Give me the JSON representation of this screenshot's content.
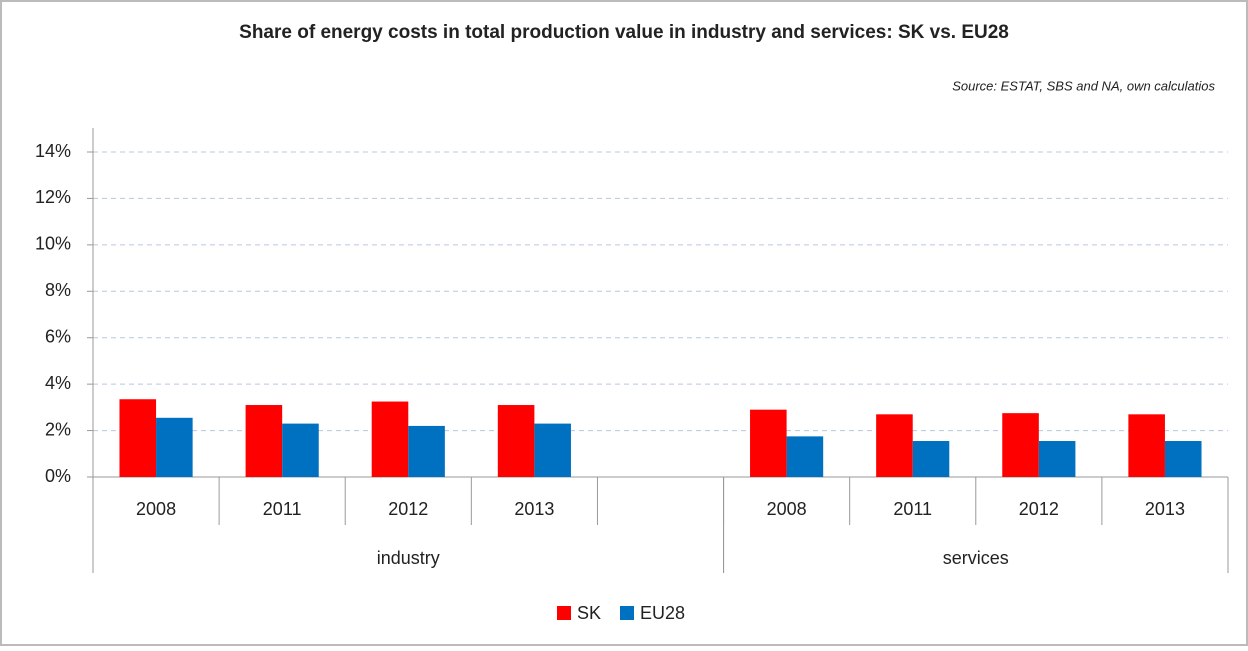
{
  "chart_data": {
    "type": "bar",
    "title": "Share of energy costs in total production value in industry and services: SK vs. EU28",
    "subtitle": "Source: ESTAT, SBS and NA, own calculatios",
    "categories": [
      "2008",
      "2011",
      "2012",
      "2013",
      null,
      "2008",
      "2011",
      "2012",
      "2013"
    ],
    "groups": [
      {
        "label": "industry",
        "span": 5
      },
      {
        "label": "services",
        "span": 4
      }
    ],
    "series": [
      {
        "name": "SK",
        "color": "#ff0000",
        "values": [
          3.35,
          3.1,
          3.25,
          3.1,
          null,
          2.9,
          2.7,
          2.75,
          2.7
        ]
      },
      {
        "name": "EU28",
        "color": "#0070c0",
        "values": [
          2.55,
          2.3,
          2.2,
          2.3,
          null,
          1.75,
          1.55,
          1.55,
          1.55
        ]
      }
    ],
    "ylim": [
      0,
      14
    ],
    "yticks": [
      {
        "value": 0,
        "label": "0%"
      },
      {
        "value": 2,
        "label": "2%"
      },
      {
        "value": 4,
        "label": "4%"
      },
      {
        "value": 6,
        "label": "6%"
      },
      {
        "value": 8,
        "label": "8%"
      },
      {
        "value": 10,
        "label": "10%"
      },
      {
        "value": 12,
        "label": "12%"
      },
      {
        "value": 14,
        "label": "14%"
      }
    ],
    "grid": true,
    "legend": "bottom"
  }
}
